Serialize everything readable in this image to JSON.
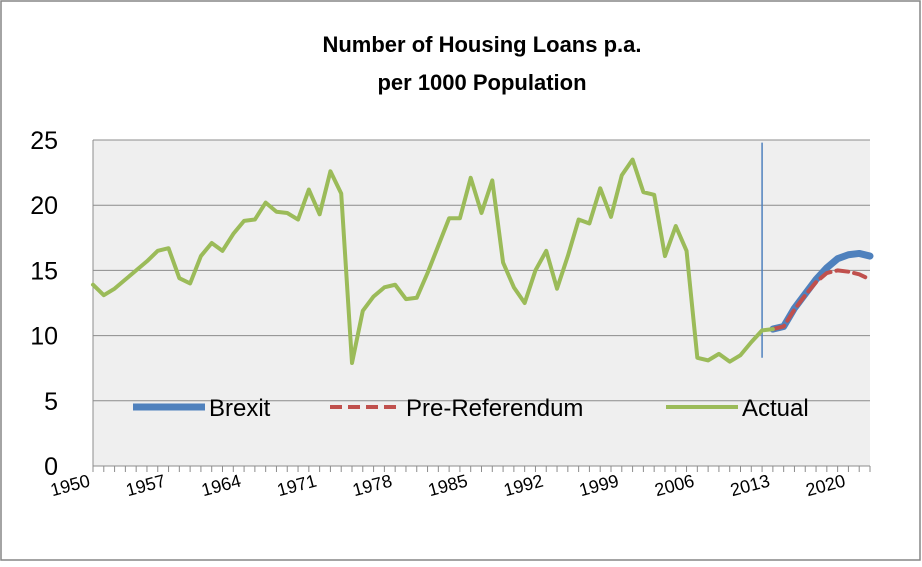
{
  "chart_data": {
    "type": "line",
    "title": [
      "Number of Housing Loans p.a.",
      "per 1000 Population"
    ],
    "x": [
      1950,
      1951,
      1952,
      1953,
      1954,
      1955,
      1956,
      1957,
      1958,
      1959,
      1960,
      1961,
      1962,
      1963,
      1964,
      1965,
      1966,
      1967,
      1968,
      1969,
      1970,
      1971,
      1972,
      1973,
      1974,
      1975,
      1976,
      1977,
      1978,
      1979,
      1980,
      1981,
      1982,
      1983,
      1984,
      1985,
      1986,
      1987,
      1988,
      1989,
      1990,
      1991,
      1992,
      1993,
      1994,
      1995,
      1996,
      1997,
      1998,
      1999,
      2000,
      2001,
      2002,
      2003,
      2004,
      2005,
      2006,
      2007,
      2008,
      2009,
      2010,
      2011,
      2012,
      2013,
      2014,
      2015,
      2016,
      2017,
      2018,
      2019,
      2020,
      2021,
      2022
    ],
    "xlim": [
      1950,
      2022
    ],
    "xticks": [
      1950,
      1957,
      1964,
      1971,
      1978,
      1985,
      1992,
      1999,
      2006,
      2013,
      2020
    ],
    "ylim": [
      0,
      25
    ],
    "yticks": [
      0,
      5,
      10,
      15,
      20,
      25
    ],
    "grid": true,
    "legend": "lower center",
    "series": [
      {
        "name": "Brexit",
        "color": "#4f81bd",
        "width": 7,
        "dash": "none",
        "values": [
          null,
          null,
          null,
          null,
          null,
          null,
          null,
          null,
          null,
          null,
          null,
          null,
          null,
          null,
          null,
          null,
          null,
          null,
          null,
          null,
          null,
          null,
          null,
          null,
          null,
          null,
          null,
          null,
          null,
          null,
          null,
          null,
          null,
          null,
          null,
          null,
          null,
          null,
          null,
          null,
          null,
          null,
          null,
          null,
          null,
          null,
          null,
          null,
          null,
          null,
          null,
          null,
          null,
          null,
          null,
          null,
          null,
          null,
          null,
          null,
          null,
          null,
          null,
          10.5,
          10.7,
          12.1,
          13.2,
          14.3,
          15.2,
          15.9,
          16.2,
          16.3,
          16.1
        ]
      },
      {
        "name": "Pre-Referendum",
        "color": "#c0504d",
        "width": 4,
        "dash": "12 6",
        "values": [
          null,
          null,
          null,
          null,
          null,
          null,
          null,
          null,
          null,
          null,
          null,
          null,
          null,
          null,
          null,
          null,
          null,
          null,
          null,
          null,
          null,
          null,
          null,
          null,
          null,
          null,
          null,
          null,
          null,
          null,
          null,
          null,
          null,
          null,
          null,
          null,
          null,
          null,
          null,
          null,
          null,
          null,
          null,
          null,
          null,
          null,
          null,
          null,
          null,
          null,
          null,
          null,
          null,
          null,
          null,
          null,
          null,
          null,
          null,
          null,
          null,
          null,
          null,
          10.5,
          10.7,
          12.0,
          13.1,
          14.1,
          14.8,
          15.0,
          14.9,
          14.7,
          14.3
        ]
      },
      {
        "name": "Actual",
        "color": "#9bbb59",
        "width": 4,
        "dash": "none",
        "values": [
          13.9,
          13.1,
          13.6,
          14.3,
          15.0,
          15.7,
          16.5,
          16.7,
          14.4,
          14.0,
          16.1,
          17.1,
          16.5,
          17.8,
          18.8,
          18.9,
          20.2,
          19.5,
          19.4,
          18.9,
          21.2,
          19.3,
          22.6,
          20.9,
          7.9,
          11.9,
          13.0,
          13.7,
          13.9,
          12.8,
          12.9,
          14.8,
          16.9,
          19.0,
          19.0,
          22.1,
          19.4,
          21.9,
          15.6,
          13.7,
          12.5,
          15.0,
          16.5,
          13.6,
          16.1,
          18.9,
          18.6,
          21.3,
          19.1,
          22.3,
          23.5,
          21.0,
          20.8,
          16.1,
          18.4,
          16.5,
          8.3,
          8.1,
          8.6,
          8.0,
          8.5,
          9.5,
          10.4,
          10.5,
          null,
          null,
          null,
          null,
          null,
          null,
          null,
          null,
          null
        ]
      }
    ],
    "marker": {
      "x": 2012,
      "y_from": 8.3,
      "y_to": 24.8,
      "color": "#4f81bd"
    }
  }
}
